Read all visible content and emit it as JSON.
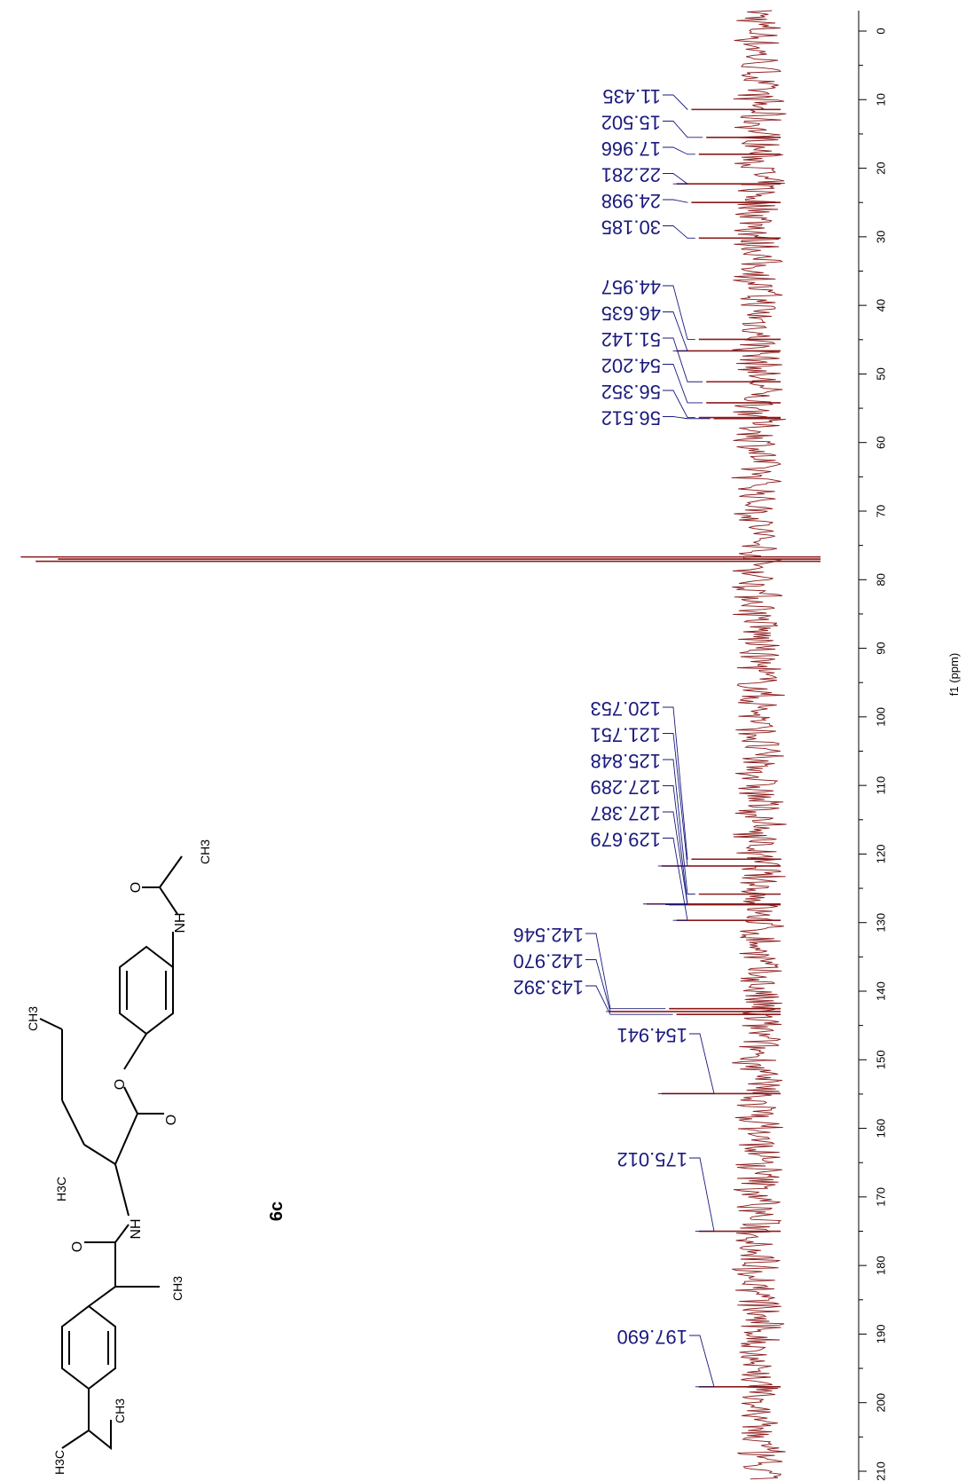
{
  "chart_data": {
    "type": "line",
    "orientation": "rotated-90",
    "xlabel": "f1 (ppm)",
    "xlim": [
      0,
      210
    ],
    "ticks": [
      0,
      10,
      20,
      30,
      40,
      50,
      60,
      70,
      80,
      90,
      100,
      110,
      120,
      130,
      140,
      150,
      160,
      170,
      180,
      190,
      200,
      210
    ],
    "tick_labels": [
      "0",
      "10",
      "20",
      "30",
      "40",
      "50",
      "60",
      "70",
      "80",
      "90",
      "100",
      "110",
      "120",
      "130",
      "140",
      "150",
      "160",
      "170",
      "180",
      "190",
      "200",
      "210"
    ],
    "peaks": [
      {
        "label": "11.435",
        "ppm": 11.435,
        "intensity": 0.09
      },
      {
        "label": "15.502",
        "ppm": 15.502,
        "intensity": 0.07
      },
      {
        "label": "17.966",
        "ppm": 17.966,
        "intensity": 0.08
      },
      {
        "label": "22.281",
        "ppm": 22.281,
        "intensity": 0.11
      },
      {
        "label": "24.998",
        "ppm": 24.998,
        "intensity": 0.09
      },
      {
        "label": "30.185",
        "ppm": 30.185,
        "intensity": 0.08
      },
      {
        "label": "44.957",
        "ppm": 44.957,
        "intensity": 0.08
      },
      {
        "label": "46.635",
        "ppm": 46.635,
        "intensity": 0.11
      },
      {
        "label": "51.142",
        "ppm": 51.142,
        "intensity": 0.07
      },
      {
        "label": "54.202",
        "ppm": 54.202,
        "intensity": 0.07
      },
      {
        "label": "56.352",
        "ppm": 56.352,
        "intensity": 0.08
      },
      {
        "label": "56.512",
        "ppm": 56.512,
        "intensity": 0.06
      },
      {
        "label": "120.753",
        "ppm": 120.753,
        "intensity": 0.09
      },
      {
        "label": "121.751",
        "ppm": 121.751,
        "intensity": 0.13
      },
      {
        "label": "125.848",
        "ppm": 125.848,
        "intensity": 0.08
      },
      {
        "label": "127.289",
        "ppm": 127.289,
        "intensity": 0.15
      },
      {
        "label": "127.387",
        "ppm": 127.387,
        "intensity": 0.12
      },
      {
        "label": "129.679",
        "ppm": 129.679,
        "intensity": 0.11
      },
      {
        "label": "142.546",
        "ppm": 142.546,
        "intensity": 0.12
      },
      {
        "label": "142.970",
        "ppm": 142.97,
        "intensity": 0.2
      },
      {
        "label": "143.392",
        "ppm": 143.392,
        "intensity": 0.11
      },
      {
        "label": "154.941",
        "ppm": 154.941,
        "intensity": 0.13
      },
      {
        "label": "175.012",
        "ppm": 175.012,
        "intensity": 0.08
      },
      {
        "label": "197.690",
        "ppm": 197.69,
        "intensity": 0.08
      }
    ],
    "solvent_peaks_ppm": [
      76.68,
      77.0,
      77.32
    ],
    "line_color": "#8b1a1a",
    "label_color": "#1a1a7e"
  },
  "structure": {
    "compound_label": "6c",
    "atom_labels": {
      "ch3_top": "CH3",
      "o_ester": "O",
      "o_carbonyl": "O",
      "nh_amide": "NH",
      "o_amide": "O",
      "h3c_sec": "H3C",
      "ch3_branch": "CH3",
      "ch3_isobutyl": "CH3",
      "h3c_isobutyl": "H3C",
      "nh_acetamide": "NH",
      "o_acetamide": "O",
      "ch3_acetyl": "CH3"
    }
  }
}
